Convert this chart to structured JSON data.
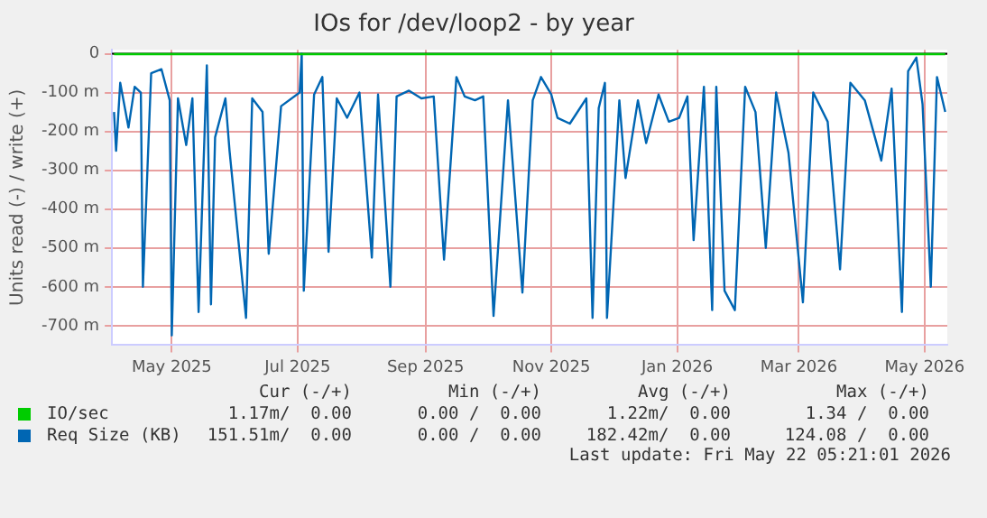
{
  "chart_data": {
    "type": "line",
    "title": "IOs for /dev/loop2 - by year",
    "ylabel": "Units read (-) / write (+)",
    "xlim": [
      "2025-04-02",
      "2026-05-12"
    ],
    "xticks": [
      {
        "value": "2025-05-01",
        "label": "May 2025"
      },
      {
        "value": "2025-07-01",
        "label": "Jul 2025"
      },
      {
        "value": "2025-09-01",
        "label": "Sep 2025"
      },
      {
        "value": "2025-11-01",
        "label": "Nov 2025"
      },
      {
        "value": "2026-01-01",
        "label": "Jan 2026"
      },
      {
        "value": "2026-03-01",
        "label": "Mar 2026"
      },
      {
        "value": "2026-05-01",
        "label": "May 2026"
      }
    ],
    "ylim": [
      -750,
      10
    ],
    "yticks": [
      0,
      {
        "value": -100,
        "label": "-100 m"
      },
      {
        "value": -200,
        "label": "-200 m"
      },
      {
        "value": -300,
        "label": "-300 m"
      },
      {
        "value": -400,
        "label": "-400 m"
      },
      {
        "value": -500,
        "label": "-500 m"
      },
      {
        "value": -600,
        "label": "-600 m"
      },
      {
        "value": -700,
        "label": "-700 m"
      }
    ],
    "grid": true,
    "legend": "bottom",
    "marker": "none",
    "line_style": "solid",
    "ref_lines": [
      {
        "axis": "y",
        "value": 0,
        "color": "#000000"
      }
    ],
    "series": [
      {
        "name": "IO/sec",
        "color": "#00cc00",
        "x": [
          "2025-04-03",
          "2025-06-01",
          "2025-08-01",
          "2025-10-01",
          "2025-12-01",
          "2026-02-01",
          "2026-04-01",
          "2026-05-11"
        ],
        "values": [
          -1,
          -1,
          -1,
          -1,
          -1,
          -1,
          -1,
          -1
        ]
      },
      {
        "name": "Req Size (KB)",
        "color": "#0066b3",
        "x": [
          "2025-04-03",
          "2025-04-04",
          "2025-04-06",
          "2025-04-10",
          "2025-04-13",
          "2025-04-16",
          "2025-04-17",
          "2025-04-21",
          "2025-04-26",
          "2025-04-30",
          "2025-05-01",
          "2025-05-04",
          "2025-05-08",
          "2025-05-11",
          "2025-05-14",
          "2025-05-18",
          "2025-05-20",
          "2025-05-22",
          "2025-05-27",
          "2025-05-29",
          "2025-06-06",
          "2025-06-09",
          "2025-06-14",
          "2025-06-17",
          "2025-06-23",
          "2025-07-02",
          "2025-07-03",
          "2025-07-04",
          "2025-07-09",
          "2025-07-13",
          "2025-07-16",
          "2025-07-20",
          "2025-07-25",
          "2025-07-31",
          "2025-08-06",
          "2025-08-09",
          "2025-08-15",
          "2025-08-18",
          "2025-08-24",
          "2025-08-30",
          "2025-09-05",
          "2025-09-10",
          "2025-09-16",
          "2025-09-20",
          "2025-09-25",
          "2025-09-29",
          "2025-10-04",
          "2025-10-11",
          "2025-10-18",
          "2025-10-23",
          "2025-10-27",
          "2025-11-01",
          "2025-11-04",
          "2025-11-10",
          "2025-11-18",
          "2025-11-21",
          "2025-11-24",
          "2025-11-27",
          "2025-11-28",
          "2025-12-04",
          "2025-12-07",
          "2025-12-13",
          "2025-12-17",
          "2025-12-23",
          "2025-12-28",
          "2026-01-02",
          "2026-01-06",
          "2026-01-09",
          "2026-01-14",
          "2026-01-18",
          "2026-01-20",
          "2026-01-24",
          "2026-01-29",
          "2026-02-03",
          "2026-02-08",
          "2026-02-13",
          "2026-02-18",
          "2026-02-24",
          "2026-03-03",
          "2026-03-08",
          "2026-03-15",
          "2026-03-21",
          "2026-03-26",
          "2026-04-02",
          "2026-04-10",
          "2026-04-15",
          "2026-04-20",
          "2026-04-23",
          "2026-04-27",
          "2026-04-30",
          "2026-05-04",
          "2026-05-07",
          "2026-05-11"
        ],
        "values": [
          -150,
          -250,
          -75,
          -190,
          -85,
          -100,
          -600,
          -50,
          -40,
          -120,
          -725,
          -115,
          -235,
          -115,
          -665,
          -30,
          -645,
          -215,
          -115,
          -250,
          -680,
          -115,
          -150,
          -515,
          -135,
          -100,
          0,
          -610,
          -105,
          -60,
          -510,
          -115,
          -165,
          -100,
          -525,
          -105,
          -600,
          -110,
          -95,
          -115,
          -110,
          -530,
          -60,
          -110,
          -120,
          -110,
          -675,
          -120,
          -615,
          -120,
          -60,
          -105,
          -165,
          -180,
          -115,
          -680,
          -140,
          -75,
          -680,
          -120,
          -320,
          -120,
          -230,
          -105,
          -175,
          -165,
          -110,
          -480,
          -85,
          -660,
          -85,
          -610,
          -660,
          -85,
          -150,
          -500,
          -100,
          -255,
          -640,
          -100,
          -175,
          -555,
          -75,
          -120,
          -275,
          -90,
          -665,
          -45,
          -10,
          -130,
          -600,
          -60,
          -150
        ]
      }
    ],
    "annotations": [
      "Cur (-/+)",
      "Min (-/+)",
      "Avg (-/+)",
      "Max (-/+)",
      "1.17m/  0.00",
      "0.00 /  0.00",
      "1.22m/  0.00",
      "1.34 /  0.00",
      "151.51m/  0.00",
      "0.00 /  0.00",
      "182.42m/  0.00",
      "124.08 /  0.00",
      "Last update: Fri May 22 05:21:01 2026"
    ]
  }
}
